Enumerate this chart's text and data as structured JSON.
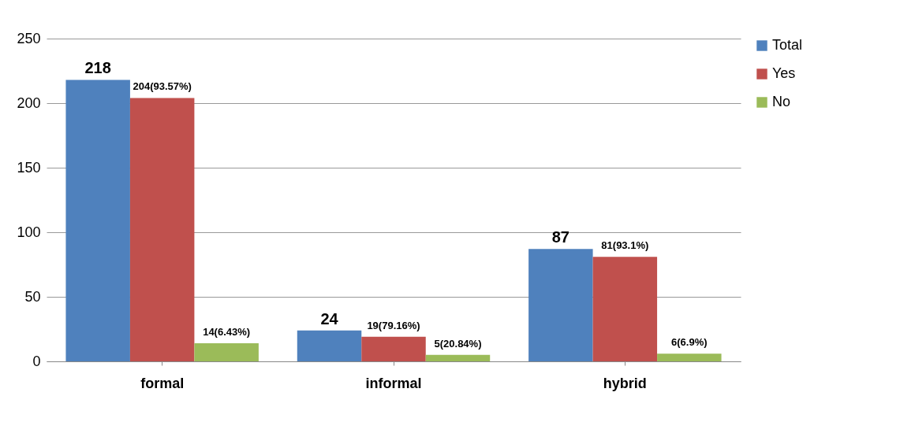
{
  "chart_data": {
    "type": "bar",
    "categories": [
      "formal",
      "informal",
      "hybrid"
    ],
    "series": [
      {
        "name": "Total",
        "color": "#4f81bd",
        "values": [
          218,
          24,
          87
        ],
        "value_labels": [
          "218",
          "24",
          "87"
        ]
      },
      {
        "name": "Yes",
        "color": "#c0504d",
        "values": [
          204,
          19,
          81
        ],
        "value_labels": [
          "204(93.57%)",
          "19(79.16%)",
          "81(93.1%)"
        ]
      },
      {
        "name": "No",
        "color": "#9bbb59",
        "values": [
          14,
          5,
          6
        ],
        "value_labels": [
          "14(6.43%)",
          "5(20.84%)",
          "6(6.9%)"
        ]
      }
    ],
    "ylim": [
      0,
      250
    ],
    "yticks": [
      0,
      50,
      100,
      150,
      200,
      250
    ],
    "grid": "y",
    "legend": "top right"
  }
}
